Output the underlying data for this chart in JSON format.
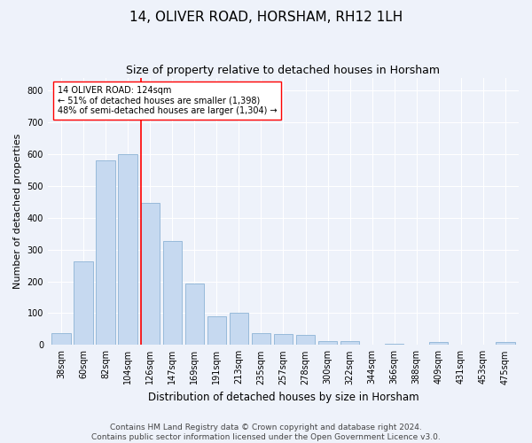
{
  "title": "14, OLIVER ROAD, HORSHAM, RH12 1LH",
  "subtitle": "Size of property relative to detached houses in Horsham",
  "xlabel": "Distribution of detached houses by size in Horsham",
  "ylabel": "Number of detached properties",
  "categories": [
    "38sqm",
    "60sqm",
    "82sqm",
    "104sqm",
    "126sqm",
    "147sqm",
    "169sqm",
    "191sqm",
    "213sqm",
    "235sqm",
    "257sqm",
    "278sqm",
    "300sqm",
    "322sqm",
    "344sqm",
    "366sqm",
    "388sqm",
    "409sqm",
    "431sqm",
    "453sqm",
    "475sqm"
  ],
  "values": [
    38,
    263,
    580,
    600,
    448,
    328,
    194,
    90,
    102,
    37,
    35,
    31,
    13,
    13,
    0,
    5,
    0,
    10,
    0,
    0,
    8
  ],
  "bar_color": "#c6d9f0",
  "bar_edge_color": "#8db3d5",
  "vline_color": "red",
  "annotation_text": "14 OLIVER ROAD: 124sqm\n← 51% of detached houses are smaller (1,398)\n48% of semi-detached houses are larger (1,304) →",
  "annotation_box_color": "white",
  "annotation_box_edge": "red",
  "ylim": [
    0,
    840
  ],
  "yticks": [
    0,
    100,
    200,
    300,
    400,
    500,
    600,
    700,
    800
  ],
  "footer_line1": "Contains HM Land Registry data © Crown copyright and database right 2024.",
  "footer_line2": "Contains public sector information licensed under the Open Government Licence v3.0.",
  "background_color": "#eef2fa",
  "grid_color": "white",
  "title_fontsize": 11,
  "subtitle_fontsize": 9,
  "ylabel_fontsize": 8,
  "xlabel_fontsize": 8.5,
  "tick_fontsize": 7,
  "annotation_fontsize": 7,
  "footer_fontsize": 6.5
}
